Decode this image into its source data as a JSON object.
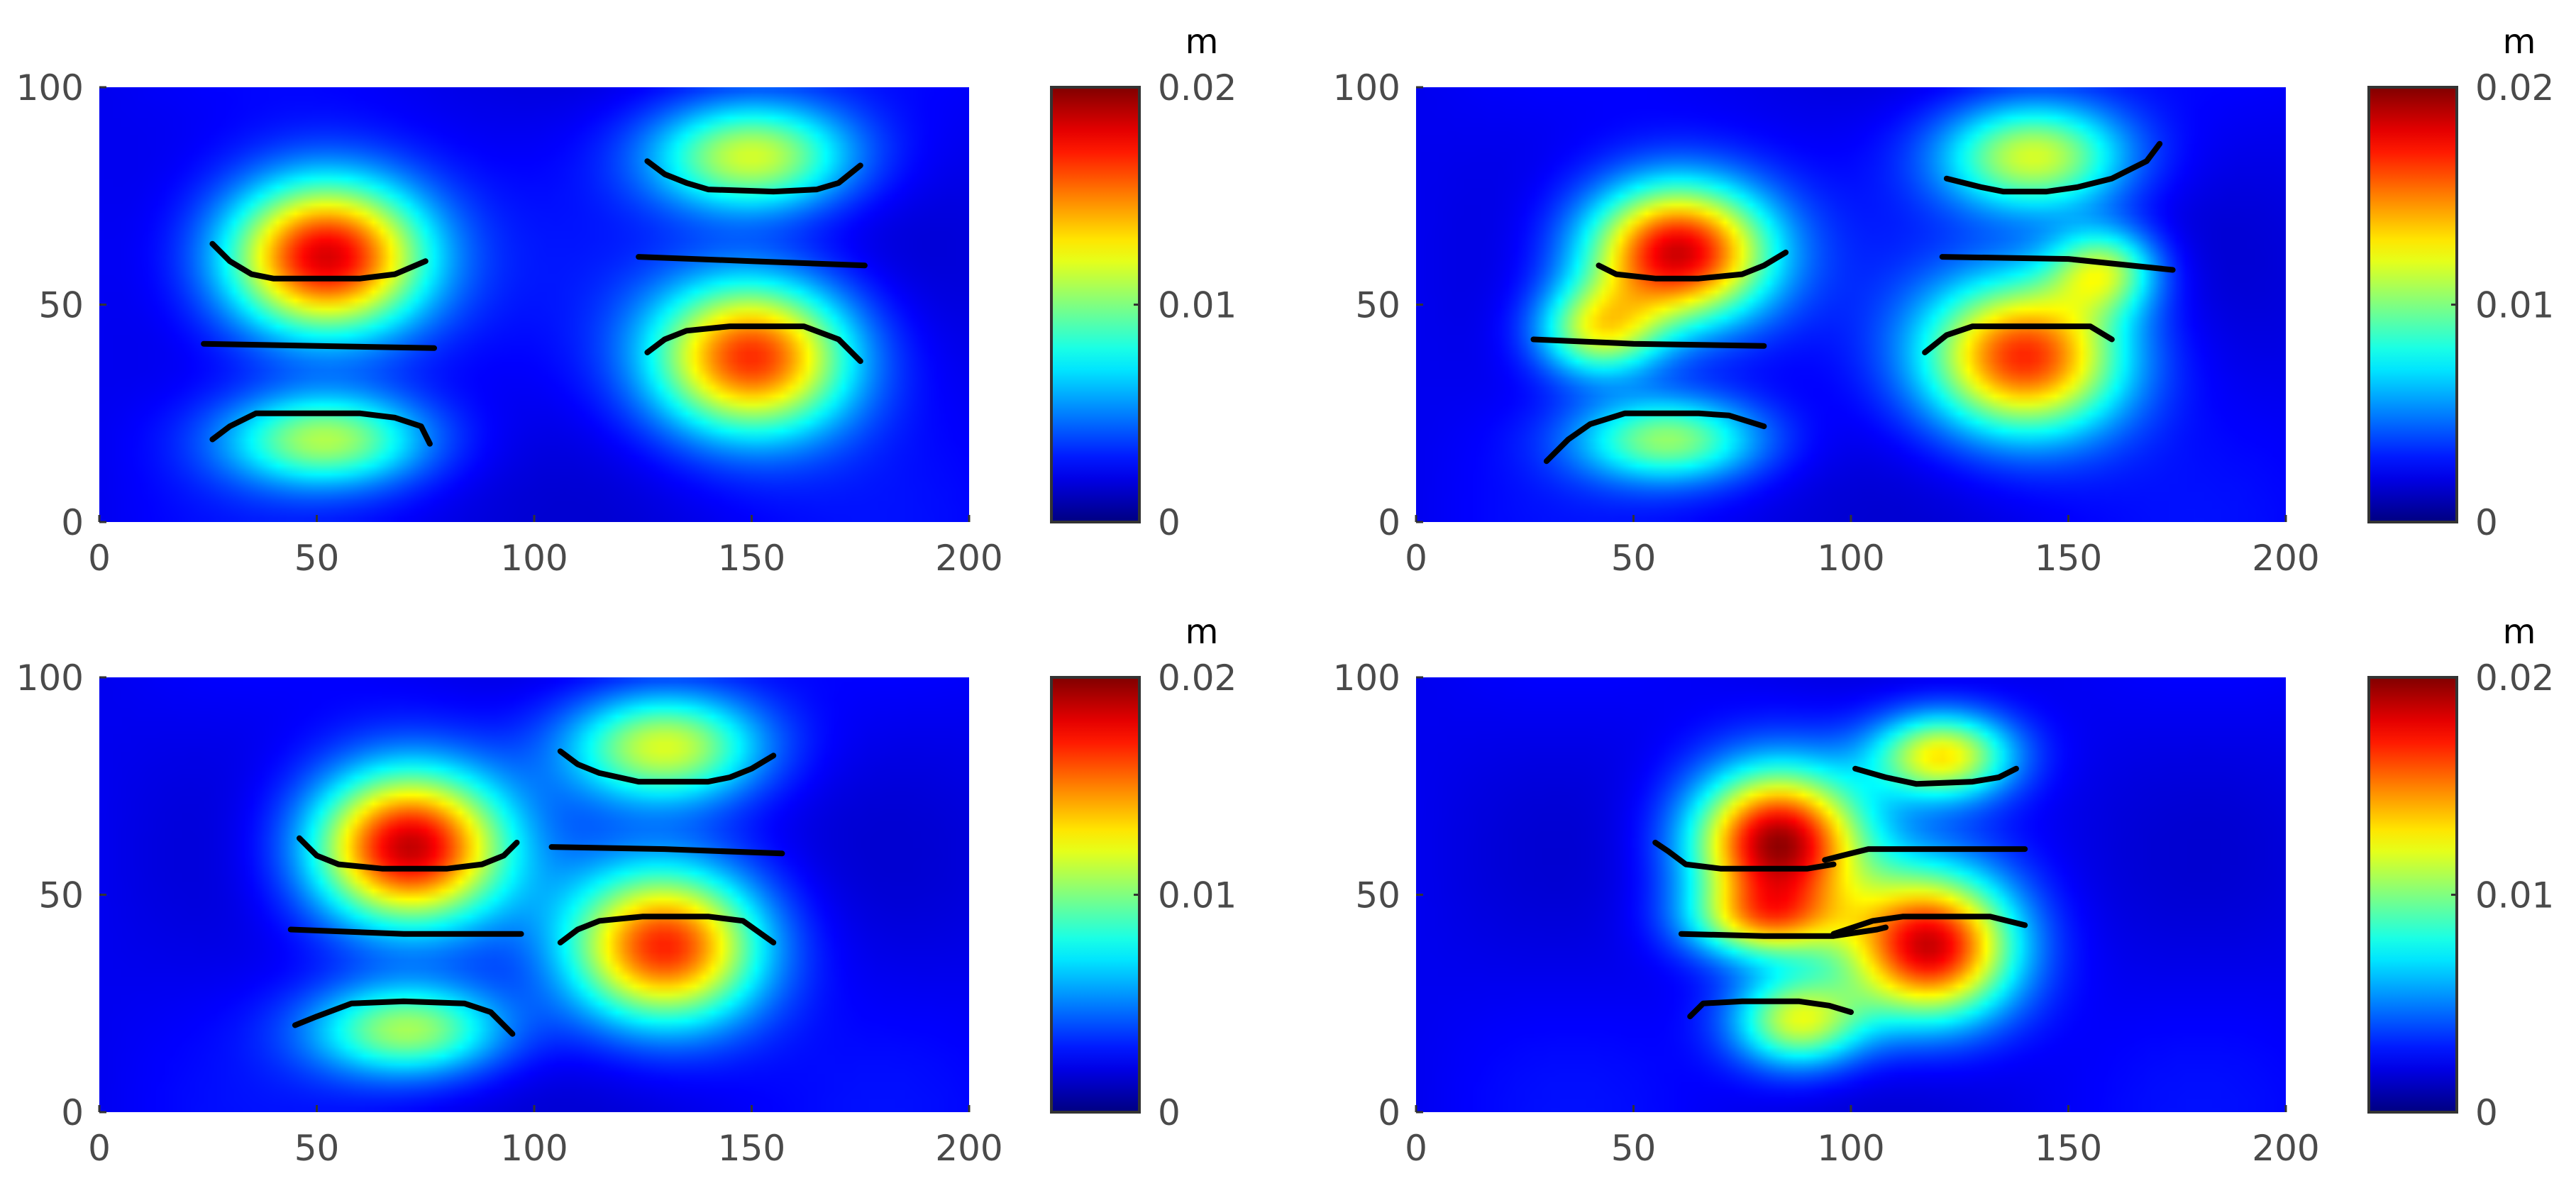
{
  "figure": {
    "panels_layout": "2x2",
    "colormap": "jet",
    "contour_color": "#000000"
  },
  "chart_data": [
    {
      "type": "heatmap",
      "x_ticks": [
        "0",
        "50",
        "100",
        "150",
        "200"
      ],
      "y_ticks": [
        "0",
        "50",
        "100"
      ],
      "xlim": [
        0,
        200
      ],
      "ylim": [
        0,
        100
      ],
      "colorbar": {
        "unit_label": "m",
        "ticks": [
          "0",
          "0.01",
          "0.02"
        ],
        "clim": [
          0,
          0.02
        ]
      },
      "hotspots": [
        {
          "x": 52,
          "y": 61,
          "peak": 0.0165,
          "rx": 26,
          "ry": 20
        },
        {
          "x": 52,
          "y": 19,
          "peak": 0.0085,
          "rx": 26,
          "ry": 12
        },
        {
          "x": 150,
          "y": 84,
          "peak": 0.0095,
          "rx": 26,
          "ry": 14
        },
        {
          "x": 150,
          "y": 38,
          "peak": 0.0145,
          "rx": 26,
          "ry": 20
        }
      ],
      "curves": [
        [
          [
            26,
            64
          ],
          [
            30,
            60
          ],
          [
            35,
            57
          ],
          [
            40,
            56
          ],
          [
            50,
            56
          ],
          [
            60,
            56
          ],
          [
            68,
            57
          ],
          [
            75,
            60
          ]
        ],
        [
          [
            24,
            41
          ],
          [
            50,
            40.5
          ],
          [
            77,
            40
          ]
        ],
        [
          [
            26,
            19
          ],
          [
            30,
            22
          ],
          [
            36,
            25
          ],
          [
            40,
            25
          ],
          [
            60,
            25
          ],
          [
            68,
            24
          ],
          [
            74,
            22
          ],
          [
            76,
            18
          ]
        ],
        [
          [
            126,
            83
          ],
          [
            130,
            80
          ],
          [
            135,
            78
          ],
          [
            140,
            76.5
          ],
          [
            155,
            76
          ],
          [
            165,
            76.5
          ],
          [
            170,
            78
          ],
          [
            175,
            82
          ]
        ],
        [
          [
            124,
            61
          ],
          [
            150,
            60
          ],
          [
            176,
            59
          ]
        ],
        [
          [
            126,
            39
          ],
          [
            130,
            42
          ],
          [
            135,
            44
          ],
          [
            145,
            45
          ],
          [
            162,
            45
          ],
          [
            170,
            42
          ],
          [
            175,
            37
          ]
        ]
      ]
    },
    {
      "type": "heatmap",
      "x_ticks": [
        "0",
        "50",
        "100",
        "150",
        "200"
      ],
      "y_ticks": [
        "0",
        "50",
        "100"
      ],
      "xlim": [
        0,
        200
      ],
      "ylim": [
        0,
        100
      ],
      "colorbar": {
        "unit_label": "m",
        "ticks": [
          "0",
          "0.01",
          "0.02"
        ],
        "clim": [
          0,
          0.02
        ]
      },
      "hotspots": [
        {
          "x": 60,
          "y": 62,
          "peak": 0.0165,
          "rx": 24,
          "ry": 18
        },
        {
          "x": 42,
          "y": 44,
          "peak": 0.009,
          "rx": 16,
          "ry": 12
        },
        {
          "x": 58,
          "y": 19,
          "peak": 0.008,
          "rx": 24,
          "ry": 11
        },
        {
          "x": 142,
          "y": 84,
          "peak": 0.0095,
          "rx": 24,
          "ry": 14
        },
        {
          "x": 140,
          "y": 38,
          "peak": 0.0145,
          "rx": 26,
          "ry": 20
        },
        {
          "x": 158,
          "y": 58,
          "peak": 0.008,
          "rx": 14,
          "ry": 11
        }
      ],
      "curves": [
        [
          [
            42,
            59
          ],
          [
            46,
            57
          ],
          [
            55,
            56
          ],
          [
            65,
            56
          ],
          [
            75,
            57
          ],
          [
            80,
            59
          ],
          [
            85,
            62
          ]
        ],
        [
          [
            27,
            42
          ],
          [
            50,
            41
          ],
          [
            80,
            40.5
          ]
        ],
        [
          [
            30,
            14
          ],
          [
            35,
            19
          ],
          [
            40,
            22.5
          ],
          [
            48,
            25
          ],
          [
            65,
            25
          ],
          [
            72,
            24.5
          ],
          [
            80,
            22
          ]
        ],
        [
          [
            122,
            79
          ],
          [
            130,
            77
          ],
          [
            135,
            76
          ],
          [
            145,
            76
          ],
          [
            152,
            77
          ],
          [
            160,
            79
          ],
          [
            168,
            83
          ],
          [
            171,
            87
          ]
        ],
        [
          [
            121,
            61
          ],
          [
            150,
            60.5
          ],
          [
            174,
            58
          ]
        ],
        [
          [
            117,
            39
          ],
          [
            122,
            43
          ],
          [
            128,
            45
          ],
          [
            145,
            45
          ],
          [
            155,
            45
          ],
          [
            160,
            42
          ]
        ]
      ]
    },
    {
      "type": "heatmap",
      "x_ticks": [
        "0",
        "50",
        "100",
        "150",
        "200"
      ],
      "y_ticks": [
        "0",
        "50",
        "100"
      ],
      "xlim": [
        0,
        200
      ],
      "ylim": [
        0,
        100
      ],
      "colorbar": {
        "unit_label": "m",
        "ticks": [
          "0",
          "0.01",
          "0.02"
        ],
        "clim": [
          0,
          0.02
        ]
      },
      "hotspots": [
        {
          "x": 71,
          "y": 61,
          "peak": 0.0165,
          "rx": 25,
          "ry": 20
        },
        {
          "x": 71,
          "y": 19,
          "peak": 0.0085,
          "rx": 25,
          "ry": 12
        },
        {
          "x": 130,
          "y": 84,
          "peak": 0.0095,
          "rx": 25,
          "ry": 14
        },
        {
          "x": 130,
          "y": 38,
          "peak": 0.0145,
          "rx": 25,
          "ry": 20
        }
      ],
      "curves": [
        [
          [
            46,
            63
          ],
          [
            50,
            59
          ],
          [
            55,
            57
          ],
          [
            65,
            56
          ],
          [
            80,
            56
          ],
          [
            88,
            57
          ],
          [
            93,
            59
          ],
          [
            96,
            62
          ]
        ],
        [
          [
            44,
            42
          ],
          [
            70,
            41
          ],
          [
            97,
            41
          ]
        ],
        [
          [
            45,
            20
          ],
          [
            50,
            22
          ],
          [
            58,
            25
          ],
          [
            70,
            25.5
          ],
          [
            84,
            25
          ],
          [
            90,
            23
          ],
          [
            95,
            18
          ]
        ],
        [
          [
            106,
            83
          ],
          [
            110,
            80
          ],
          [
            115,
            78
          ],
          [
            124,
            76
          ],
          [
            140,
            76
          ],
          [
            145,
            77
          ],
          [
            150,
            79
          ],
          [
            155,
            82
          ]
        ],
        [
          [
            104,
            61
          ],
          [
            130,
            60.5
          ],
          [
            157,
            59.5
          ]
        ],
        [
          [
            106,
            39
          ],
          [
            110,
            42
          ],
          [
            115,
            44
          ],
          [
            125,
            45
          ],
          [
            140,
            45
          ],
          [
            148,
            44
          ],
          [
            155,
            39
          ]
        ]
      ]
    },
    {
      "type": "heatmap",
      "x_ticks": [
        "0",
        "50",
        "100",
        "150",
        "200"
      ],
      "y_ticks": [
        "0",
        "50",
        "100"
      ],
      "xlim": [
        0,
        200
      ],
      "ylim": [
        0,
        100
      ],
      "colorbar": {
        "unit_label": "m",
        "ticks": [
          "0",
          "0.01",
          "0.02"
        ],
        "clim": [
          0,
          0.02
        ]
      },
      "hotspots": [
        {
          "x": 83,
          "y": 62,
          "peak": 0.017,
          "rx": 22,
          "ry": 19
        },
        {
          "x": 80,
          "y": 44,
          "peak": 0.008,
          "rx": 20,
          "ry": 10
        },
        {
          "x": 88,
          "y": 21,
          "peak": 0.0095,
          "rx": 17,
          "ry": 12
        },
        {
          "x": 121,
          "y": 82,
          "peak": 0.0105,
          "rx": 18,
          "ry": 11
        },
        {
          "x": 118,
          "y": 38,
          "peak": 0.016,
          "rx": 22,
          "ry": 19
        }
      ],
      "curves": [
        [
          [
            55,
            62
          ],
          [
            58,
            60
          ],
          [
            62,
            57
          ],
          [
            70,
            56
          ],
          [
            80,
            56
          ],
          [
            90,
            56
          ],
          [
            96,
            57
          ]
        ],
        [
          [
            61,
            41
          ],
          [
            80,
            40.5
          ],
          [
            96,
            40.5
          ],
          [
            106,
            42
          ],
          [
            108,
            42.5
          ]
        ],
        [
          [
            63,
            22
          ],
          [
            66,
            25
          ],
          [
            75,
            25.5
          ],
          [
            88,
            25.5
          ],
          [
            95,
            24.5
          ],
          [
            100,
            23
          ]
        ],
        [
          [
            101,
            79
          ],
          [
            108,
            77
          ],
          [
            115,
            75.5
          ],
          [
            128,
            76
          ],
          [
            134,
            77
          ],
          [
            138,
            79
          ]
        ],
        [
          [
            94,
            58
          ],
          [
            98,
            59
          ],
          [
            104,
            60.5
          ],
          [
            120,
            60.5
          ],
          [
            140,
            60.5
          ]
        ],
        [
          [
            96,
            41
          ],
          [
            105,
            44
          ],
          [
            112,
            45
          ],
          [
            132,
            45
          ],
          [
            140,
            43
          ]
        ]
      ]
    }
  ]
}
